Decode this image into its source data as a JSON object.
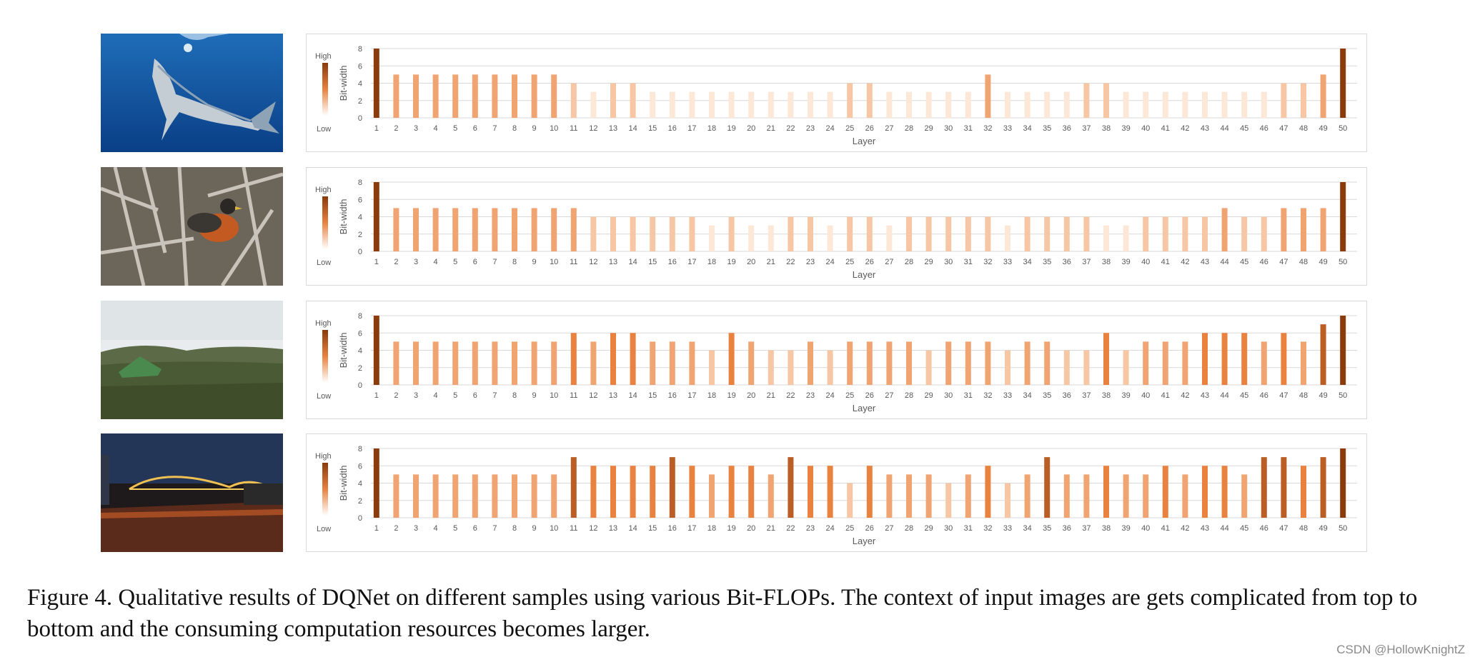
{
  "colors": {
    "high": "#8b3a0b",
    "mid": "#e9823f",
    "low": "#fde8d8",
    "grid": "#d9d9d9",
    "text": "#595959"
  },
  "chart_data": [
    {
      "type": "bar",
      "ylabel": "Bit-width",
      "xlabel": "Layer",
      "legend_high": "High",
      "legend_low": "Low",
      "ylim": [
        0,
        8
      ],
      "yticks": [
        0,
        2,
        4,
        6,
        8
      ],
      "categories": [
        1,
        2,
        3,
        4,
        5,
        6,
        7,
        8,
        9,
        10,
        11,
        12,
        13,
        14,
        15,
        16,
        17,
        18,
        19,
        20,
        21,
        22,
        23,
        24,
        25,
        26,
        27,
        28,
        29,
        30,
        31,
        32,
        33,
        34,
        35,
        36,
        37,
        38,
        39,
        40,
        41,
        42,
        43,
        44,
        45,
        46,
        47,
        48,
        49,
        50
      ],
      "values": [
        8,
        5,
        5,
        5,
        5,
        5,
        5,
        5,
        5,
        5,
        4,
        3,
        4,
        4,
        3,
        3,
        3,
        3,
        3,
        3,
        3,
        3,
        3,
        3,
        4,
        4,
        3,
        3,
        3,
        3,
        3,
        5,
        3,
        3,
        3,
        3,
        4,
        4,
        3,
        3,
        3,
        3,
        3,
        3,
        3,
        3,
        4,
        4,
        5,
        8
      ]
    },
    {
      "type": "bar",
      "ylabel": "Bit-width",
      "xlabel": "Layer",
      "legend_high": "High",
      "legend_low": "Low",
      "ylim": [
        0,
        8
      ],
      "yticks": [
        0,
        2,
        4,
        6,
        8
      ],
      "categories": [
        1,
        2,
        3,
        4,
        5,
        6,
        7,
        8,
        9,
        10,
        11,
        12,
        13,
        14,
        15,
        16,
        17,
        18,
        19,
        20,
        21,
        22,
        23,
        24,
        25,
        26,
        27,
        28,
        29,
        30,
        31,
        32,
        33,
        34,
        35,
        36,
        37,
        38,
        39,
        40,
        41,
        42,
        43,
        44,
        45,
        46,
        47,
        48,
        49,
        50
      ],
      "values": [
        8,
        5,
        5,
        5,
        5,
        5,
        5,
        5,
        5,
        5,
        5,
        4,
        4,
        4,
        4,
        4,
        4,
        3,
        4,
        3,
        3,
        4,
        4,
        3,
        4,
        4,
        3,
        4,
        4,
        4,
        4,
        4,
        3,
        4,
        4,
        4,
        4,
        3,
        3,
        4,
        4,
        4,
        4,
        5,
        4,
        4,
        5,
        5,
        5,
        8
      ]
    },
    {
      "type": "bar",
      "ylabel": "Bit-width",
      "xlabel": "Layer",
      "legend_high": "High",
      "legend_low": "Low",
      "ylim": [
        0,
        8
      ],
      "yticks": [
        0,
        2,
        4,
        6,
        8
      ],
      "categories": [
        1,
        2,
        3,
        4,
        5,
        6,
        7,
        8,
        9,
        10,
        11,
        12,
        13,
        14,
        15,
        16,
        17,
        18,
        19,
        20,
        21,
        22,
        23,
        24,
        25,
        26,
        27,
        28,
        29,
        30,
        31,
        32,
        33,
        34,
        35,
        36,
        37,
        38,
        39,
        40,
        41,
        42,
        43,
        44,
        45,
        46,
        47,
        48,
        49,
        50
      ],
      "values": [
        8,
        5,
        5,
        5,
        5,
        5,
        5,
        5,
        5,
        5,
        6,
        5,
        6,
        6,
        5,
        5,
        5,
        4,
        6,
        5,
        4,
        4,
        5,
        4,
        5,
        5,
        5,
        5,
        4,
        5,
        5,
        5,
        4,
        5,
        5,
        4,
        4,
        6,
        4,
        5,
        5,
        5,
        6,
        6,
        6,
        5,
        6,
        5,
        7,
        8
      ]
    },
    {
      "type": "bar",
      "ylabel": "Bit-width",
      "xlabel": "Layer",
      "legend_high": "High",
      "legend_low": "Low",
      "ylim": [
        0,
        8
      ],
      "yticks": [
        0,
        2,
        4,
        6,
        8
      ],
      "categories": [
        1,
        2,
        3,
        4,
        5,
        6,
        7,
        8,
        9,
        10,
        11,
        12,
        13,
        14,
        15,
        16,
        17,
        18,
        19,
        20,
        21,
        22,
        23,
        24,
        25,
        26,
        27,
        28,
        29,
        30,
        31,
        32,
        33,
        34,
        35,
        36,
        37,
        38,
        39,
        40,
        41,
        42,
        43,
        44,
        45,
        46,
        47,
        48,
        49,
        50
      ],
      "values": [
        8,
        5,
        5,
        5,
        5,
        5,
        5,
        5,
        5,
        5,
        7,
        6,
        6,
        6,
        6,
        7,
        6,
        5,
        6,
        6,
        5,
        7,
        6,
        6,
        4,
        6,
        5,
        5,
        5,
        4,
        5,
        6,
        4,
        5,
        7,
        5,
        5,
        6,
        5,
        5,
        6,
        5,
        6,
        6,
        5,
        7,
        7,
        6,
        7,
        8
      ]
    }
  ],
  "images": [
    {
      "subject": "shark-underwater"
    },
    {
      "subject": "robin-on-branch"
    },
    {
      "subject": "tent-on-hillside"
    },
    {
      "subject": "bridge-at-night"
    }
  ],
  "caption": "Figure 4. Qualitative results of DQNet on different samples using various Bit-FLOPs. The context of input images are gets complicated from top to bottom and the consuming computation resources becomes larger.",
  "watermark": "CSDN @HollowKnightZ"
}
